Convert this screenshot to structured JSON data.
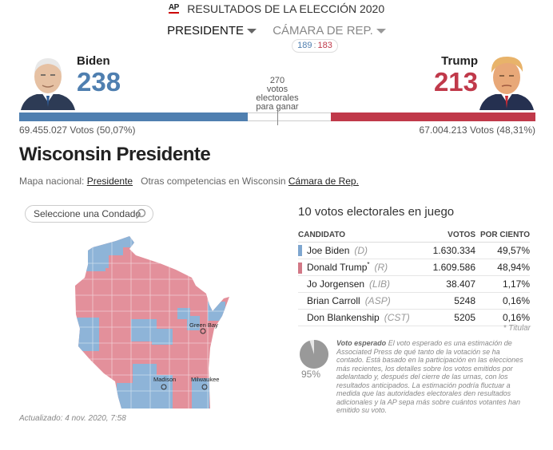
{
  "header": {
    "logo": "AP",
    "title": "RESULTADOS DE LA ELECCIÓN 2020"
  },
  "tabs": {
    "presidente": "PRESIDENTE",
    "camara": "CÁMARA DE REP."
  },
  "house_count": {
    "dem": "189",
    "sep": ":",
    "rep": "183"
  },
  "candidates": {
    "dem": {
      "name": "Biden",
      "ev": "238",
      "popular": "69.455.027 Votos (50,07%)"
    },
    "rep": {
      "name": "Trump",
      "ev": "213",
      "popular": "67.004.213 Votos (48,31%)"
    }
  },
  "needed": {
    "count": "270",
    "line1": "votos",
    "line2": "electorales",
    "line3": "para ganar"
  },
  "ev_bar": {
    "total": 538,
    "dem": 238,
    "rep": 213
  },
  "state": {
    "title": "Wisconsin Presidente",
    "nav_prefix": "Mapa nacional:",
    "nav_presidente": "Presidente",
    "nav_middle": "Otras competencias en Wisconsin",
    "nav_camara": "Cámara de Rep."
  },
  "search": {
    "placeholder": "Seleccione una Condado"
  },
  "map": {
    "cities": [
      "Green Bay",
      "Madison",
      "Milwaukee"
    ]
  },
  "updated": "Actualizado: 4 nov. 2020, 7:58",
  "electoral": "10 votos electorales en juego",
  "table": {
    "headers": [
      "CANDIDATO",
      "VOTOS",
      "POR CIENTO"
    ],
    "rows": [
      {
        "name": "Joe Biden",
        "party": "(D)",
        "votes": "1.630.334",
        "pct": "49,57%",
        "color": "#7ea6cf",
        "incumbent": false
      },
      {
        "name": "Donald Trump",
        "party": "(R)",
        "votes": "1.609.586",
        "pct": "48,94%",
        "color": "#d27886",
        "incumbent": true
      },
      {
        "name": "Jo Jorgensen",
        "party": "(LIB)",
        "votes": "38.407",
        "pct": "1,17%",
        "color": "",
        "incumbent": false
      },
      {
        "name": "Brian Carroll",
        "party": "(ASP)",
        "votes": "5248",
        "pct": "0,16%",
        "color": "",
        "incumbent": false
      },
      {
        "name": "Don Blankenship",
        "party": "(CST)",
        "votes": "5205",
        "pct": "0,16%",
        "color": "",
        "incumbent": false
      }
    ],
    "footnote": "* Titular"
  },
  "expected": {
    "pct": "95%",
    "value": 0.95,
    "label": "Voto esperado",
    "text": "El voto esperado es una estimación de Associated Press de qué tanto de la votación se ha contado. Está basado en la participación en las elecciones más recientes, los detalles sobre los votos emitidos por adelantado y, después del cierre de las urnas, con los resultados anticipados. La estimación podría fluctuar a medida que las autoridades electorales den resultados adicionales y la AP sepa más sobre cuántos votantes han emitido su voto."
  },
  "colors": {
    "dem": "#4f7fb0",
    "rep": "#c0394a",
    "map_dem": "#8eb4d8",
    "map_rep": "#e3909b"
  }
}
